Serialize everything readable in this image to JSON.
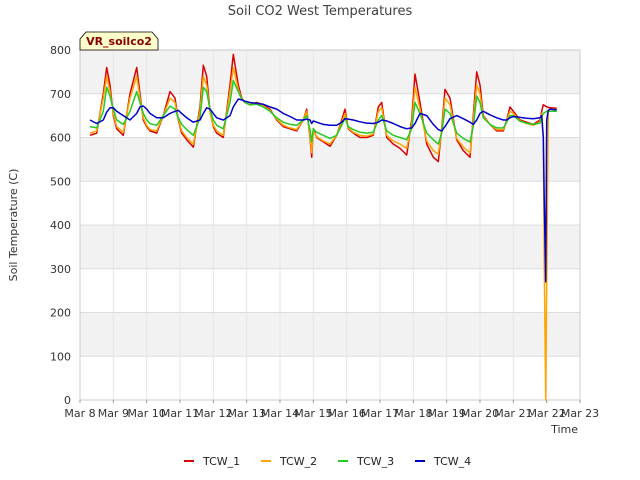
{
  "chart_data": {
    "type": "line",
    "title": "Soil CO2 West Temperatures",
    "xlabel": "Time",
    "ylabel": "Soil Temperature (C)",
    "site_badge": "VR_soilco2",
    "ylim": [
      0,
      800
    ],
    "xlim": [
      0,
      15
    ],
    "yticks": [
      0,
      100,
      200,
      300,
      400,
      500,
      600,
      700,
      800
    ],
    "xticks": [
      {
        "x": 0,
        "label": "Mar 8"
      },
      {
        "x": 1,
        "label": "Mar 9"
      },
      {
        "x": 2,
        "label": "Mar 10"
      },
      {
        "x": 3,
        "label": "Mar 11"
      },
      {
        "x": 4,
        "label": "Mar 12"
      },
      {
        "x": 5,
        "label": "Mar 13"
      },
      {
        "x": 6,
        "label": "Mar 14"
      },
      {
        "x": 7,
        "label": "Mar 15"
      },
      {
        "x": 8,
        "label": "Mar 16"
      },
      {
        "x": 9,
        "label": "Mar 17"
      },
      {
        "x": 10,
        "label": "Mar 18"
      },
      {
        "x": 11,
        "label": "Mar 19"
      },
      {
        "x": 12,
        "label": "Mar 20"
      },
      {
        "x": 13,
        "label": "Mar 21"
      },
      {
        "x": 14,
        "label": "Mar 22"
      },
      {
        "x": 15,
        "label": "Mar 23"
      }
    ],
    "grid": true,
    "legend_position": "bottom",
    "series": [
      {
        "name": "TCW_1",
        "color": "#dd0000",
        "x": [
          0.3,
          0.5,
          0.7,
          0.8,
          0.9,
          1.0,
          1.1,
          1.3,
          1.5,
          1.7,
          1.8,
          1.9,
          2.0,
          2.1,
          2.3,
          2.5,
          2.7,
          2.85,
          2.95,
          3.05,
          3.2,
          3.4,
          3.6,
          3.7,
          3.8,
          3.9,
          4.0,
          4.1,
          4.3,
          4.5,
          4.6,
          4.75,
          4.85,
          4.95,
          5.1,
          5.3,
          5.5,
          5.7,
          5.9,
          6.1,
          6.3,
          6.5,
          6.7,
          6.8,
          6.9,
          6.95,
          7.0,
          7.1,
          7.3,
          7.5,
          7.7,
          7.85,
          7.95,
          8.05,
          8.2,
          8.4,
          8.6,
          8.8,
          8.95,
          9.05,
          9.2,
          9.4,
          9.6,
          9.8,
          9.95,
          10.05,
          10.2,
          10.4,
          10.6,
          10.75,
          10.85,
          10.95,
          11.1,
          11.3,
          11.5,
          11.7,
          11.8,
          11.9,
          12.0,
          12.1,
          12.3,
          12.5,
          12.7,
          12.8,
          12.9,
          13.0,
          13.2,
          13.4,
          13.6,
          13.8,
          13.85,
          13.9,
          14.0,
          14.1,
          14.3
        ],
        "y": [
          605,
          610,
          700,
          760,
          720,
          650,
          620,
          605,
          700,
          760,
          700,
          640,
          625,
          615,
          610,
          650,
          705,
          690,
          640,
          610,
          595,
          578,
          670,
          765,
          740,
          660,
          625,
          610,
          600,
          720,
          790,
          720,
          690,
          680,
          675,
          680,
          675,
          665,
          640,
          625,
          620,
          615,
          640,
          665,
          600,
          555,
          620,
          600,
          590,
          580,
          605,
          640,
          665,
          620,
          610,
          600,
          600,
          605,
          670,
          680,
          600,
          585,
          575,
          560,
          640,
          745,
          680,
          585,
          555,
          545,
          620,
          710,
          690,
          595,
          570,
          555,
          650,
          750,
          720,
          650,
          630,
          615,
          615,
          640,
          670,
          660,
          640,
          635,
          630,
          640,
          660,
          675,
          670,
          668,
          667
        ]
      },
      {
        "name": "TCW_2",
        "color": "#ffa500",
        "x": [
          0.3,
          0.5,
          0.7,
          0.8,
          0.9,
          1.0,
          1.1,
          1.3,
          1.5,
          1.7,
          1.8,
          1.9,
          2.0,
          2.1,
          2.3,
          2.5,
          2.7,
          2.85,
          2.95,
          3.05,
          3.2,
          3.4,
          3.6,
          3.7,
          3.8,
          3.9,
          4.0,
          4.1,
          4.3,
          4.5,
          4.6,
          4.75,
          4.85,
          4.95,
          5.1,
          5.3,
          5.5,
          5.7,
          5.9,
          6.1,
          6.3,
          6.5,
          6.7,
          6.8,
          6.9,
          6.95,
          7.0,
          7.1,
          7.3,
          7.5,
          7.7,
          7.85,
          7.95,
          8.05,
          8.2,
          8.4,
          8.6,
          8.8,
          8.95,
          9.05,
          9.2,
          9.4,
          9.6,
          9.8,
          9.95,
          10.05,
          10.2,
          10.4,
          10.6,
          10.75,
          10.85,
          10.95,
          11.1,
          11.3,
          11.5,
          11.7,
          11.8,
          11.9,
          12.0,
          12.1,
          12.3,
          12.5,
          12.7,
          12.8,
          12.9,
          13.0,
          13.2,
          13.4,
          13.6,
          13.8,
          13.85,
          13.9,
          13.93,
          13.97,
          14.0,
          14.05,
          14.1,
          14.3
        ],
        "y": [
          610,
          615,
          690,
          740,
          705,
          655,
          625,
          612,
          690,
          740,
          690,
          645,
          628,
          618,
          615,
          650,
          690,
          680,
          642,
          615,
          600,
          585,
          660,
          740,
          720,
          660,
          628,
          615,
          605,
          705,
          760,
          710,
          688,
          680,
          674,
          678,
          672,
          662,
          642,
          628,
          622,
          618,
          640,
          660,
          605,
          565,
          615,
          602,
          592,
          585,
          605,
          635,
          655,
          622,
          612,
          605,
          603,
          608,
          660,
          668,
          605,
          592,
          585,
          575,
          630,
          715,
          665,
          592,
          570,
          562,
          615,
          690,
          675,
          598,
          578,
          565,
          640,
          720,
          700,
          648,
          630,
          618,
          618,
          638,
          660,
          655,
          638,
          632,
          628,
          636,
          655,
          600,
          300,
          0,
          270,
          660,
          665,
          663
        ]
      },
      {
        "name": "TCW_3",
        "color": "#22cc22",
        "x": [
          0.3,
          0.5,
          0.7,
          0.8,
          0.9,
          1.0,
          1.1,
          1.3,
          1.5,
          1.7,
          1.8,
          1.9,
          2.0,
          2.1,
          2.3,
          2.5,
          2.7,
          2.85,
          2.95,
          3.05,
          3.2,
          3.4,
          3.6,
          3.7,
          3.8,
          3.9,
          4.0,
          4.1,
          4.3,
          4.5,
          4.6,
          4.75,
          4.85,
          4.95,
          5.1,
          5.3,
          5.5,
          5.7,
          5.9,
          6.1,
          6.3,
          6.5,
          6.7,
          6.8,
          6.9,
          6.95,
          7.0,
          7.1,
          7.3,
          7.5,
          7.7,
          7.85,
          7.95,
          8.05,
          8.2,
          8.4,
          8.6,
          8.8,
          8.95,
          9.05,
          9.2,
          9.4,
          9.6,
          9.8,
          9.95,
          10.05,
          10.2,
          10.4,
          10.6,
          10.75,
          10.85,
          10.95,
          11.1,
          11.3,
          11.5,
          11.7,
          11.8,
          11.9,
          12.0,
          12.1,
          12.3,
          12.5,
          12.7,
          12.8,
          12.9,
          13.0,
          13.2,
          13.4,
          13.6,
          13.8,
          13.85,
          13.9,
          14.0,
          14.1,
          14.3
        ],
        "y": [
          625,
          622,
          660,
          715,
          695,
          665,
          640,
          630,
          660,
          705,
          680,
          655,
          640,
          632,
          628,
          650,
          672,
          665,
          645,
          630,
          618,
          605,
          645,
          715,
          705,
          665,
          640,
          628,
          620,
          680,
          730,
          705,
          688,
          680,
          675,
          676,
          670,
          660,
          645,
          635,
          630,
          628,
          640,
          650,
          618,
          590,
          620,
          612,
          605,
          598,
          605,
          628,
          645,
          625,
          618,
          612,
          610,
          612,
          640,
          650,
          615,
          605,
          600,
          595,
          620,
          680,
          655,
          610,
          595,
          585,
          610,
          665,
          655,
          610,
          598,
          590,
          625,
          695,
          680,
          645,
          630,
          622,
          622,
          635,
          650,
          650,
          637,
          633,
          630,
          633,
          648,
          655,
          660,
          660,
          660
        ]
      },
      {
        "name": "TCW_4",
        "color": "#0000cc",
        "x": [
          0.3,
          0.5,
          0.7,
          0.8,
          0.9,
          1.0,
          1.1,
          1.3,
          1.5,
          1.7,
          1.8,
          1.9,
          2.0,
          2.1,
          2.3,
          2.5,
          2.7,
          2.85,
          2.95,
          3.05,
          3.2,
          3.4,
          3.6,
          3.7,
          3.8,
          3.9,
          4.0,
          4.1,
          4.3,
          4.5,
          4.6,
          4.75,
          4.85,
          4.95,
          5.1,
          5.3,
          5.5,
          5.7,
          5.9,
          6.1,
          6.3,
          6.5,
          6.7,
          6.8,
          6.9,
          6.95,
          7.0,
          7.1,
          7.3,
          7.5,
          7.7,
          7.85,
          7.95,
          8.05,
          8.2,
          8.4,
          8.6,
          8.8,
          8.95,
          9.05,
          9.2,
          9.4,
          9.6,
          9.8,
          9.95,
          10.05,
          10.2,
          10.4,
          10.6,
          10.75,
          10.85,
          10.95,
          11.1,
          11.3,
          11.5,
          11.7,
          11.8,
          11.9,
          12.0,
          12.1,
          12.3,
          12.5,
          12.7,
          12.8,
          12.9,
          13.0,
          13.2,
          13.4,
          13.6,
          13.8,
          13.85,
          13.9,
          13.93,
          13.97,
          14.0,
          14.05,
          14.1,
          14.3
        ],
        "y": [
          640,
          632,
          640,
          658,
          668,
          668,
          660,
          650,
          640,
          655,
          670,
          672,
          665,
          655,
          645,
          645,
          655,
          660,
          662,
          655,
          645,
          635,
          640,
          655,
          668,
          665,
          655,
          645,
          640,
          650,
          670,
          688,
          686,
          683,
          680,
          678,
          676,
          670,
          665,
          655,
          648,
          640,
          640,
          642,
          640,
          632,
          638,
          635,
          630,
          628,
          628,
          635,
          643,
          642,
          640,
          636,
          633,
          632,
          635,
          640,
          638,
          632,
          625,
          620,
          622,
          632,
          655,
          650,
          630,
          618,
          615,
          625,
          643,
          650,
          643,
          635,
          630,
          640,
          655,
          660,
          652,
          645,
          640,
          640,
          645,
          648,
          646,
          644,
          643,
          645,
          650,
          600,
          450,
          270,
          640,
          662,
          665,
          663
        ]
      }
    ]
  }
}
